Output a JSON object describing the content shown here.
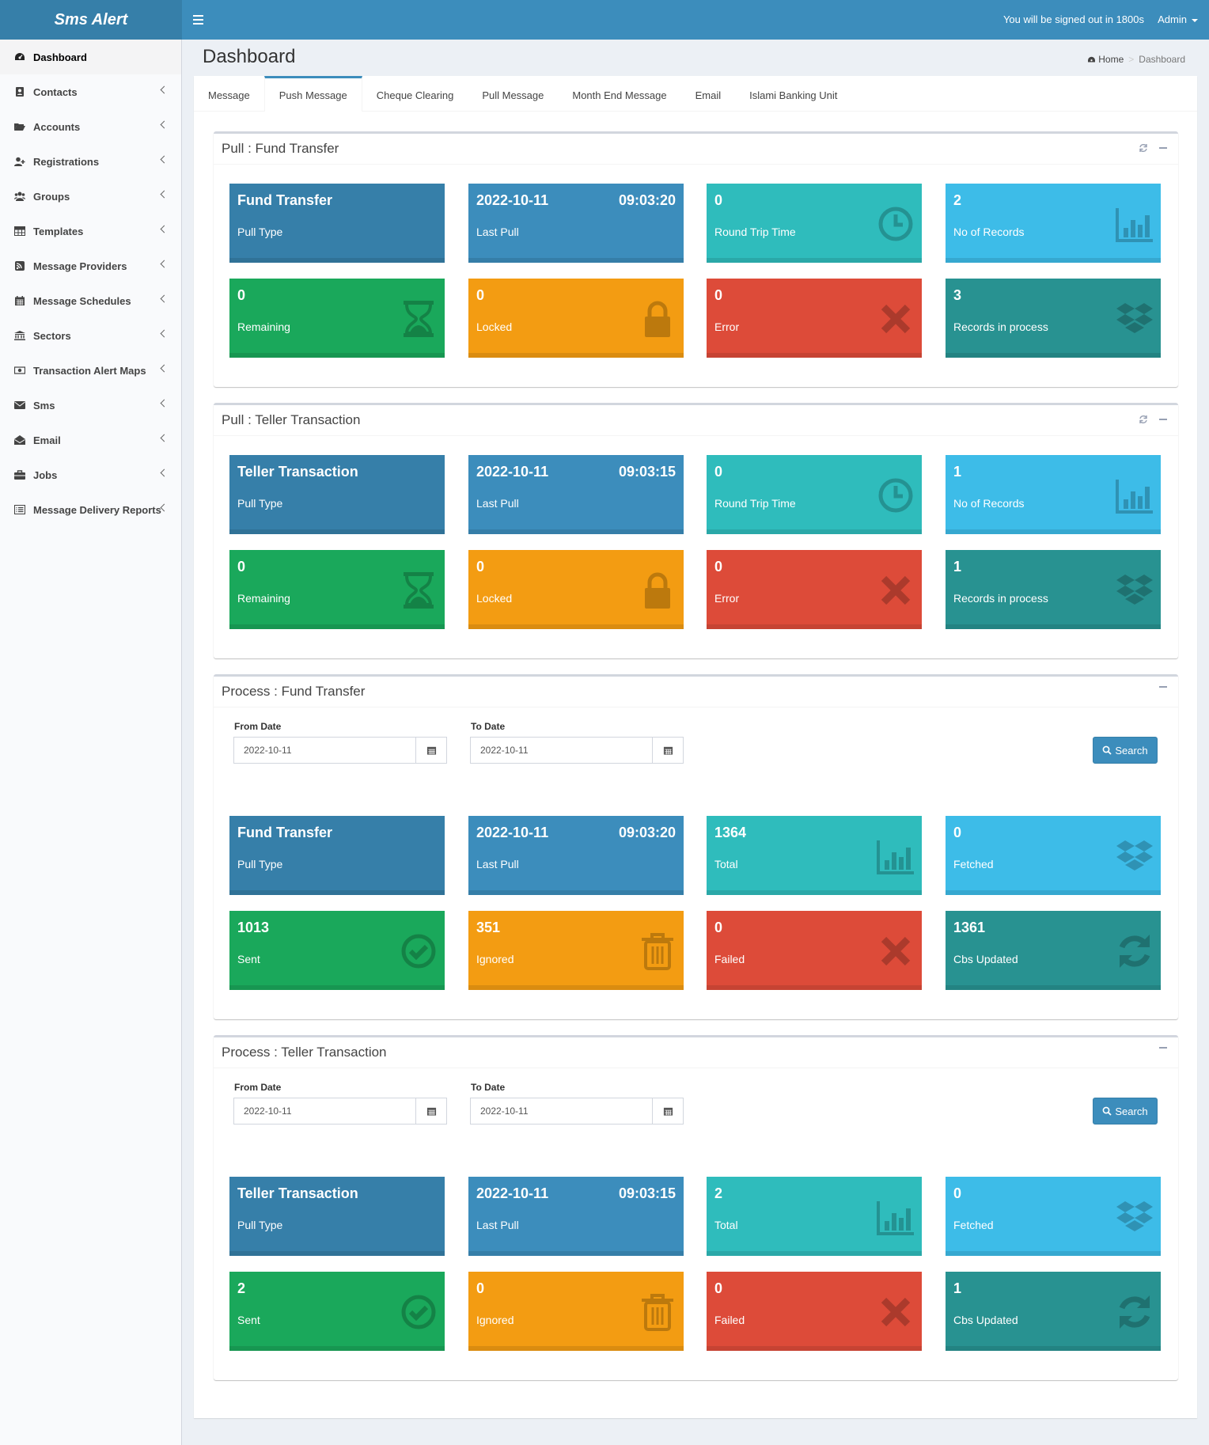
{
  "header": {
    "logo": "Sms Alert",
    "signout": "You will be signed out in 1800s",
    "user": "Admin"
  },
  "sidebar": {
    "items": [
      {
        "label": "Dashboard",
        "icon": "dashboard-icon"
      },
      {
        "label": "Contacts",
        "icon": "address-book-icon"
      },
      {
        "label": "Accounts",
        "icon": "folder-open-icon"
      },
      {
        "label": "Registrations",
        "icon": "user-plus-icon"
      },
      {
        "label": "Groups",
        "icon": "users-icon"
      },
      {
        "label": "Templates",
        "icon": "table-icon"
      },
      {
        "label": "Message Providers",
        "icon": "rss-square-icon"
      },
      {
        "label": "Message Schedules",
        "icon": "calendar-icon"
      },
      {
        "label": "Sectors",
        "icon": "bank-icon"
      },
      {
        "label": "Transaction Alert Maps",
        "icon": "money-icon"
      },
      {
        "label": "Sms",
        "icon": "envelope-icon"
      },
      {
        "label": "Email",
        "icon": "envelope-open-icon"
      },
      {
        "label": "Jobs",
        "icon": "briefcase-icon"
      },
      {
        "label": "Message Delivery Reports",
        "icon": "list-alt-icon"
      }
    ]
  },
  "page": {
    "title": "Dashboard",
    "breadcrumb": {
      "home": "Home",
      "current": "Dashboard"
    }
  },
  "tabs": [
    "Message",
    "Push Message",
    "Cheque Clearing",
    "Pull Message",
    "Month End Message",
    "Email",
    "Islami Banking Unit"
  ],
  "boxes": {
    "pull_ft": {
      "title": "Pull : Fund Transfer",
      "t1": {
        "value": "Fund Transfer",
        "label": "Pull Type"
      },
      "t2": {
        "date": "2022-10-11",
        "time": "09:03:20",
        "label": "Last Pull"
      },
      "t3": {
        "value": "0",
        "label": "Round Trip Time"
      },
      "t4": {
        "value": "2",
        "label": "No of Records"
      },
      "t5": {
        "value": "0",
        "label": "Remaining"
      },
      "t6": {
        "value": "0",
        "label": "Locked"
      },
      "t7": {
        "value": "0",
        "label": "Error"
      },
      "t8": {
        "value": "3",
        "label": "Records in process"
      }
    },
    "pull_tt": {
      "title": "Pull : Teller Transaction",
      "t1": {
        "value": "Teller Transaction",
        "label": "Pull Type"
      },
      "t2": {
        "date": "2022-10-11",
        "time": "09:03:15",
        "label": "Last Pull"
      },
      "t3": {
        "value": "0",
        "label": "Round Trip Time"
      },
      "t4": {
        "value": "1",
        "label": "No of Records"
      },
      "t5": {
        "value": "0",
        "label": "Remaining"
      },
      "t6": {
        "value": "0",
        "label": "Locked"
      },
      "t7": {
        "value": "0",
        "label": "Error"
      },
      "t8": {
        "value": "1",
        "label": "Records in process"
      }
    },
    "proc_ft": {
      "title": "Process : Fund Transfer",
      "from_label": "From Date",
      "from_value": "2022-10-11",
      "to_label": "To Date",
      "to_value": "2022-10-11",
      "search": "Search",
      "t1": {
        "value": "Fund Transfer",
        "label": "Pull Type"
      },
      "t2": {
        "date": "2022-10-11",
        "time": "09:03:20",
        "label": "Last Pull"
      },
      "t3": {
        "value": "1364",
        "label": "Total"
      },
      "t4": {
        "value": "0",
        "label": "Fetched"
      },
      "t5": {
        "value": "1013",
        "label": "Sent"
      },
      "t6": {
        "value": "351",
        "label": "Ignored"
      },
      "t7": {
        "value": "0",
        "label": "Failed"
      },
      "t8": {
        "value": "1361",
        "label": "Cbs Updated"
      }
    },
    "proc_tt": {
      "title": "Process : Teller Transaction",
      "from_label": "From Date",
      "from_value": "2022-10-11",
      "to_label": "To Date",
      "to_value": "2022-10-11",
      "search": "Search",
      "t1": {
        "value": "Teller Transaction",
        "label": "Pull Type"
      },
      "t2": {
        "date": "2022-10-11",
        "time": "09:03:15",
        "label": "Last Pull"
      },
      "t3": {
        "value": "2",
        "label": "Total"
      },
      "t4": {
        "value": "0",
        "label": "Fetched"
      },
      "t5": {
        "value": "2",
        "label": "Sent"
      },
      "t6": {
        "value": "0",
        "label": "Ignored"
      },
      "t7": {
        "value": "0",
        "label": "Failed"
      },
      "t8": {
        "value": "1",
        "label": "Cbs Updated"
      }
    }
  },
  "colors": {
    "header": "#3c8dbc",
    "logo": "#367fa9",
    "primary": "#367fa9",
    "info": "#2fbcbc",
    "aqua": "#3dbce8",
    "success": "#1aa85b",
    "warning": "#f39c12",
    "danger": "#dd4b39",
    "teal": "#289291"
  }
}
